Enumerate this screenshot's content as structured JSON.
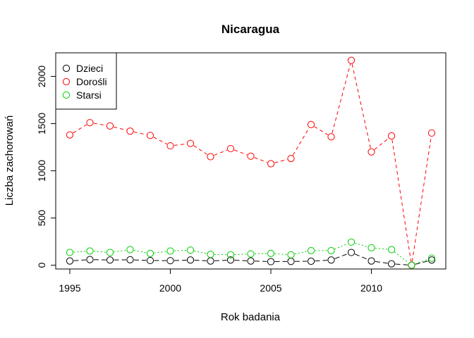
{
  "chart_data": {
    "type": "line",
    "title": "Nicaragua",
    "xlabel": "Rok badania",
    "ylabel": "Liczba zachorowań",
    "xlim": [
      1994.3,
      2013.7
    ],
    "ylim": [
      -40,
      2250
    ],
    "x_ticks": [
      1995,
      2000,
      2005,
      2010
    ],
    "y_ticks": [
      0,
      500,
      1000,
      1500,
      2000
    ],
    "legend_position": "top-left",
    "grid": false,
    "x": [
      1995,
      1996,
      1997,
      1998,
      1999,
      2000,
      2001,
      2002,
      2003,
      2004,
      2005,
      2006,
      2007,
      2008,
      2009,
      2010,
      2011,
      2012,
      2013
    ],
    "series": [
      {
        "name": "Dzieci",
        "color": "#000000",
        "dash": "7,4",
        "values": [
          45,
          60,
          55,
          58,
          50,
          48,
          55,
          45,
          55,
          45,
          38,
          40,
          42,
          55,
          135,
          45,
          15,
          0,
          55
        ]
      },
      {
        "name": "Dorośli",
        "color": "#FF0000",
        "dash": "5,4",
        "values": [
          1380,
          1510,
          1475,
          1420,
          1375,
          1265,
          1290,
          1150,
          1235,
          1155,
          1075,
          1130,
          1490,
          1360,
          2170,
          1200,
          1370,
          0,
          1400
        ]
      },
      {
        "name": "Starsi",
        "color": "#00CD00",
        "dash": "2,3",
        "values": [
          135,
          150,
          135,
          165,
          125,
          150,
          160,
          115,
          110,
          120,
          125,
          110,
          155,
          155,
          245,
          185,
          165,
          0,
          75
        ]
      }
    ]
  }
}
